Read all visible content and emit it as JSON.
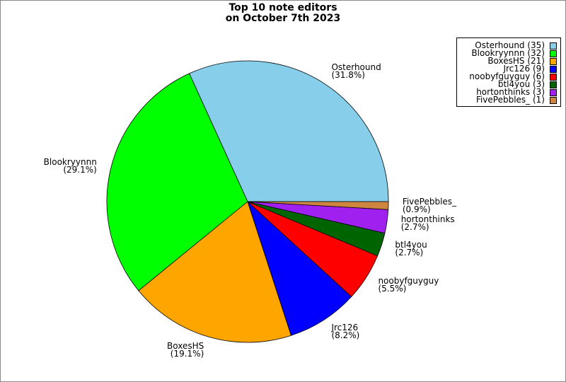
{
  "chart_data": {
    "type": "pie",
    "title": "Top 10 note editors",
    "subtitle": "on October 7th 2023",
    "categories": [
      "Osterhound",
      "Blookryynnn",
      "BoxesHS",
      "Jrc126",
      "noobyfguyguy",
      "btl4you",
      "hortonthinks",
      "FivePebbles_"
    ],
    "values": [
      31.8,
      29.1,
      19.1,
      8.2,
      5.5,
      2.7,
      2.7,
      0.9
    ],
    "value_labels": [
      "(31.8%)",
      "(29.1%)",
      "(19.1%)",
      "(8.2%)",
      "(5.5%)",
      "(2.7%)",
      "(2.7%)",
      "(0.9%)"
    ],
    "legend": [
      "Osterhound (35)",
      "Blookryynnn (32)",
      "BoxesHS (21)",
      "Jrc126 (9)",
      "noobyfguyguy (6)",
      "btl4you (3)",
      "hortonthinks (3)",
      "FivePebbles_ (1)"
    ],
    "colors": [
      "#87ceeb",
      "#00ff00",
      "#ffa500",
      "#0000ff",
      "#ff0000",
      "#006400",
      "#a020f0",
      "#cd853f"
    ],
    "legend_position": "upper right"
  }
}
